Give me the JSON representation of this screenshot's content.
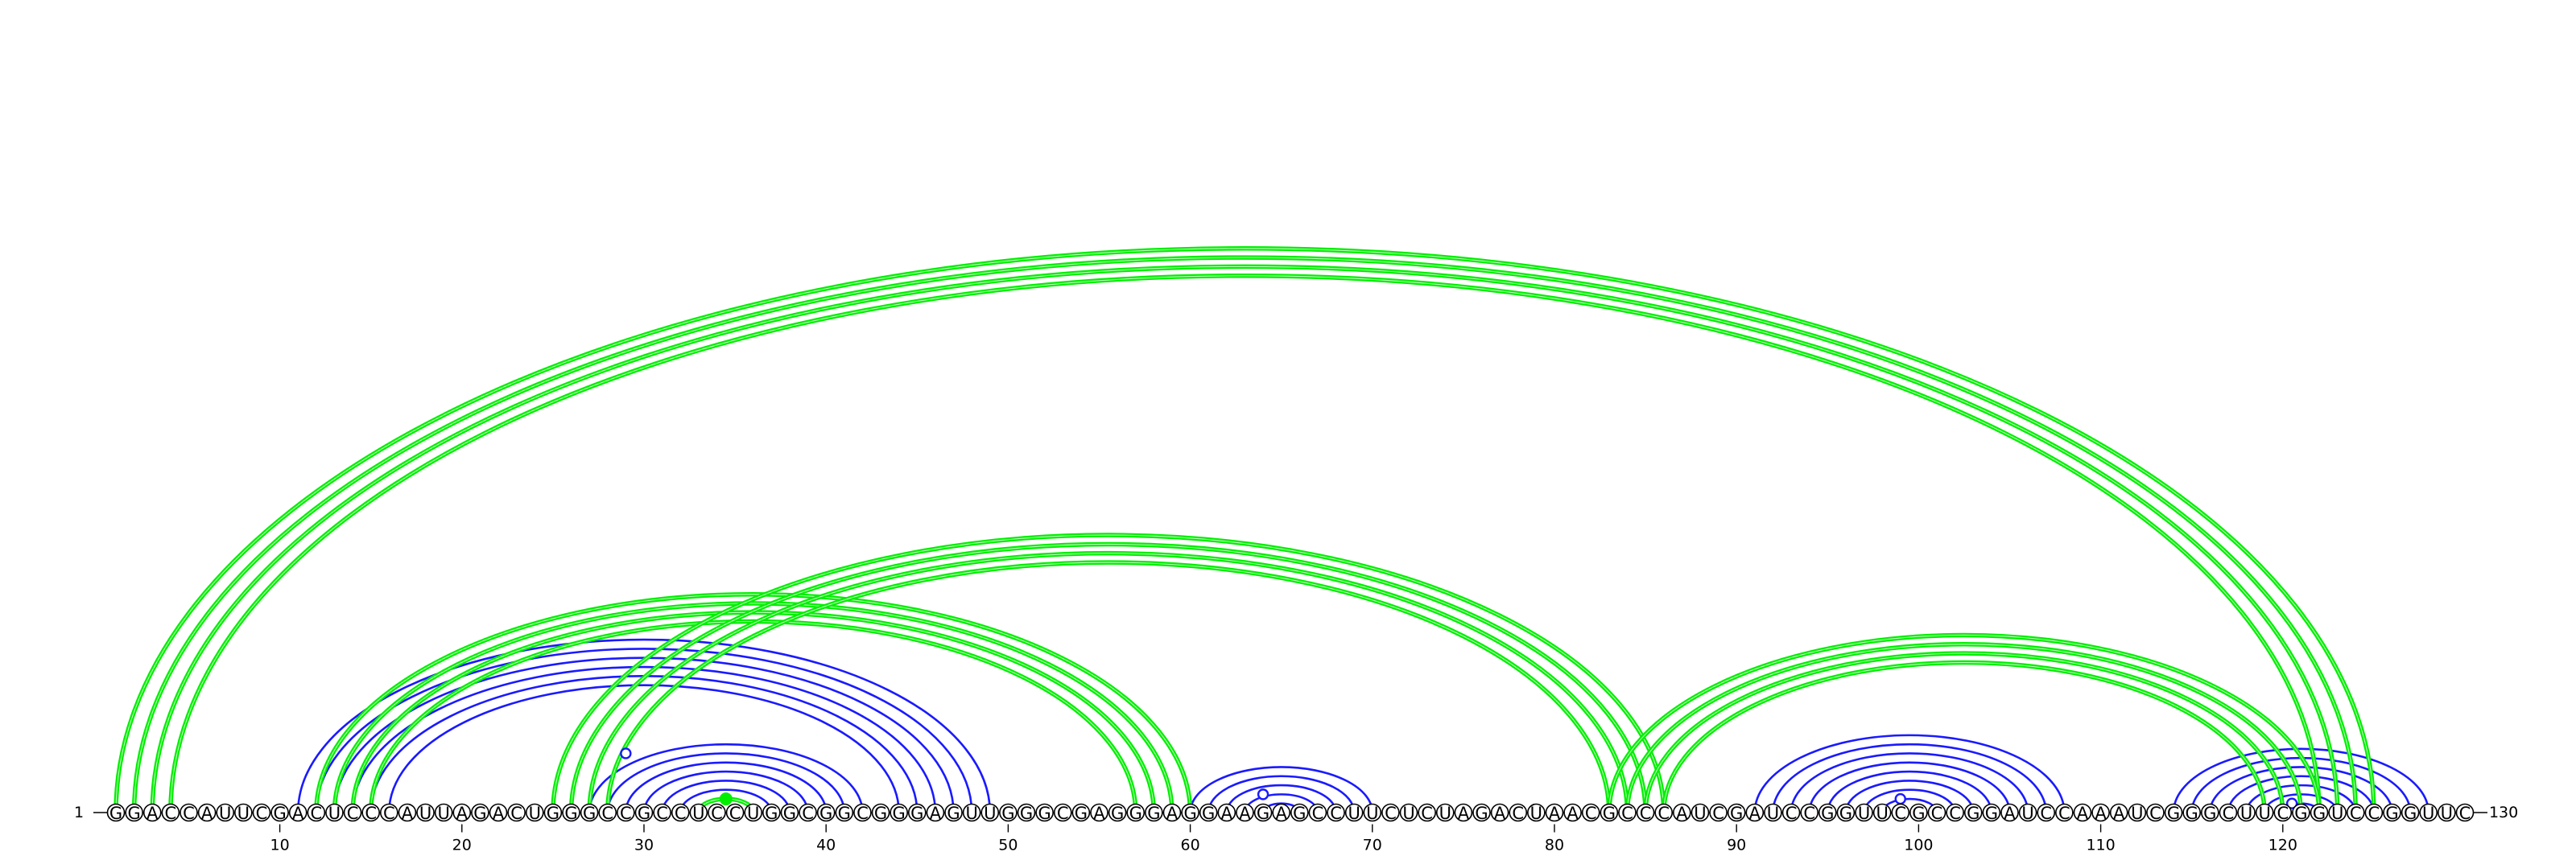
{
  "sequence": "GGACCAUUCGACUCCCAUUAGACUGGGCCGCCUCCUGGCGGCGGGAGUUGGGCGAGGGAGGAAGAGCCUUCUCUAGACUAACGCCCAUCGAUCCGGUUCGCCGGAUCCAAAUCGGGCUUCGGUCCGGUUC",
  "start_label": "1",
  "end_label": "130",
  "tick_labels": [
    "10",
    "20",
    "30",
    "40",
    "50",
    "60",
    "70",
    "80",
    "90",
    "100",
    "110",
    "120"
  ],
  "colors": {
    "lower_structure": "#1a1aff",
    "upper_structure": "#00ee00",
    "outline": "#000000"
  },
  "lower_pairs": [
    [
      11,
      49
    ],
    [
      12,
      48
    ],
    [
      13,
      47
    ],
    [
      14,
      46
    ],
    [
      15,
      45
    ],
    [
      16,
      44
    ],
    [
      27,
      42
    ],
    [
      28,
      41
    ],
    [
      29,
      40
    ],
    [
      30,
      39
    ],
    [
      31,
      38
    ],
    [
      32,
      37
    ],
    [
      33,
      36
    ],
    [
      60,
      70
    ],
    [
      61,
      69
    ],
    [
      62,
      68
    ],
    [
      63,
      67
    ],
    [
      64,
      66
    ],
    [
      91,
      108
    ],
    [
      92,
      107
    ],
    [
      93,
      106
    ],
    [
      94,
      105
    ],
    [
      95,
      104
    ],
    [
      96,
      103
    ],
    [
      97,
      102
    ],
    [
      98,
      101
    ],
    [
      114,
      128
    ],
    [
      115,
      127
    ],
    [
      116,
      126
    ],
    [
      117,
      125
    ],
    [
      118,
      124
    ],
    [
      119,
      123
    ],
    [
      120,
      122
    ]
  ],
  "upper_pairs": [
    [
      1,
      125
    ],
    [
      2,
      124
    ],
    [
      3,
      123
    ],
    [
      4,
      122
    ],
    [
      12,
      60
    ],
    [
      13,
      59
    ],
    [
      14,
      58
    ],
    [
      15,
      57
    ],
    [
      25,
      86
    ],
    [
      26,
      85
    ],
    [
      27,
      84
    ],
    [
      28,
      83
    ],
    [
      83,
      122
    ],
    [
      84,
      121
    ],
    [
      85,
      120
    ],
    [
      86,
      119
    ],
    [
      33,
      36
    ]
  ],
  "lower_markers": [
    29,
    64,
    99,
    120.5
  ],
  "upper_markers": [
    34.5
  ]
}
